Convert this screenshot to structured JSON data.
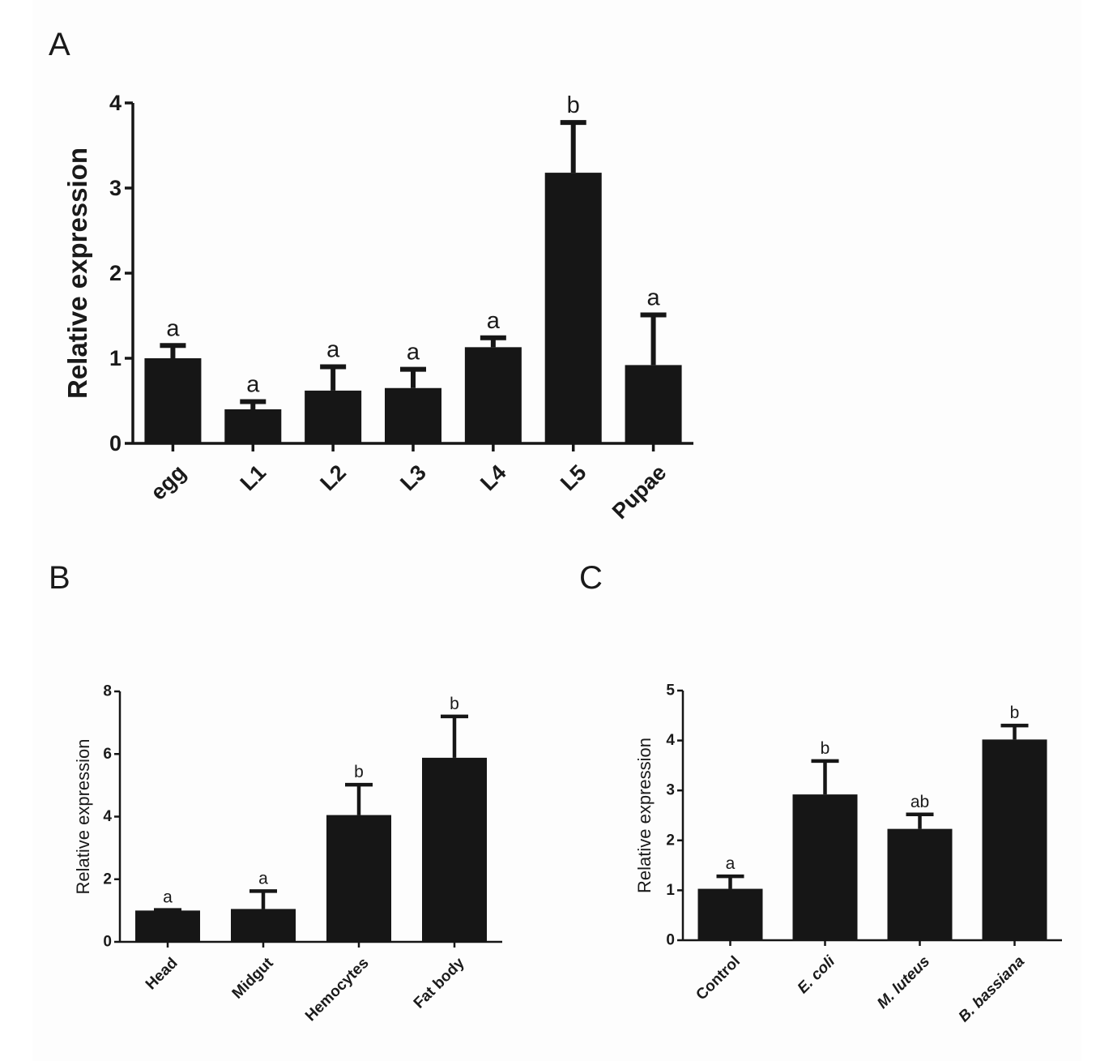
{
  "chart_data": [
    {
      "panel": "A",
      "type": "bar",
      "ylabel": "Relative expression",
      "xlabel": "",
      "ylim": [
        0,
        4
      ],
      "yticks": [
        0,
        1,
        2,
        3,
        4
      ],
      "categories": [
        "egg",
        "L1",
        "L2",
        "L3",
        "L4",
        "L5",
        "Pupae"
      ],
      "values": [
        1.0,
        0.4,
        0.62,
        0.65,
        1.13,
        3.18,
        0.92
      ],
      "errors": [
        0.15,
        0.09,
        0.28,
        0.22,
        0.11,
        0.59,
        0.59
      ],
      "significance": [
        "a",
        "a",
        "a",
        "a",
        "a",
        "b",
        "a"
      ],
      "bar_color": "#161616"
    },
    {
      "panel": "B",
      "type": "bar",
      "ylabel": "Relative expression",
      "xlabel": "",
      "ylim": [
        0,
        8
      ],
      "yticks": [
        0,
        2,
        4,
        6,
        8
      ],
      "categories": [
        "Head",
        "Midgut",
        "Hemocytes",
        "Fat body"
      ],
      "values": [
        1.0,
        1.05,
        4.05,
        5.88
      ],
      "errors": [
        0.02,
        0.57,
        0.97,
        1.32
      ],
      "significance": [
        "a",
        "a",
        "b",
        "b"
      ],
      "bar_color": "#161616"
    },
    {
      "panel": "C",
      "type": "bar",
      "ylabel": "Relative expression",
      "xlabel": "",
      "ylim": [
        0,
        5
      ],
      "yticks": [
        0,
        1,
        2,
        3,
        4,
        5
      ],
      "categories": [
        "Control",
        "E. coli",
        "M. luteus",
        "B. bassiana"
      ],
      "category_italic": [
        false,
        true,
        true,
        true
      ],
      "values": [
        1.03,
        2.92,
        2.23,
        4.02
      ],
      "errors": [
        0.25,
        0.67,
        0.29,
        0.28
      ],
      "significance": [
        "a",
        "b",
        "ab",
        "b"
      ],
      "bar_color": "#161616"
    }
  ]
}
